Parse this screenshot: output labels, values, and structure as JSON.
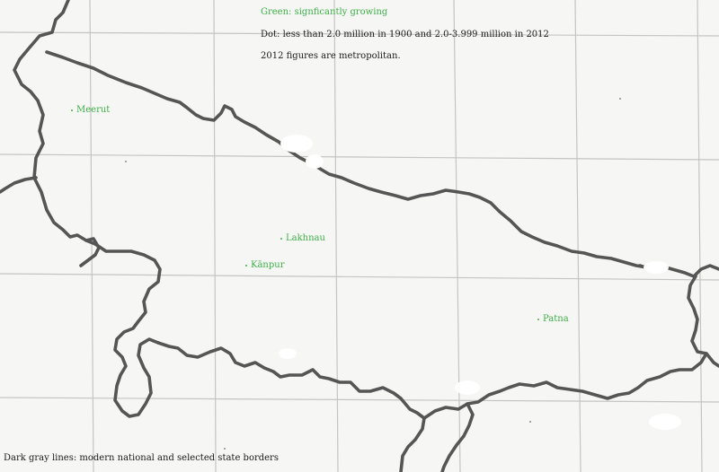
{
  "legend": {
    "green_note": "Green: signficantly growing",
    "dot_note": "Dot: less than 2.0 million in 1900 and 2.0-3.999 million in 2012",
    "figures_note": "2012 figures are metropolitan.",
    "border_note": "Dark gray lines: modern national and selected state borders"
  },
  "cities": [
    {
      "name": "Meerut"
    },
    {
      "name": "Lakhnau"
    },
    {
      "name": "Kānpur"
    },
    {
      "name": "Patna"
    }
  ],
  "colors": {
    "growing": "#3fae49",
    "border": "#555555",
    "grid": "#c4c4c4",
    "paper": "#f6f6f4",
    "text": "#1a1a1a"
  }
}
